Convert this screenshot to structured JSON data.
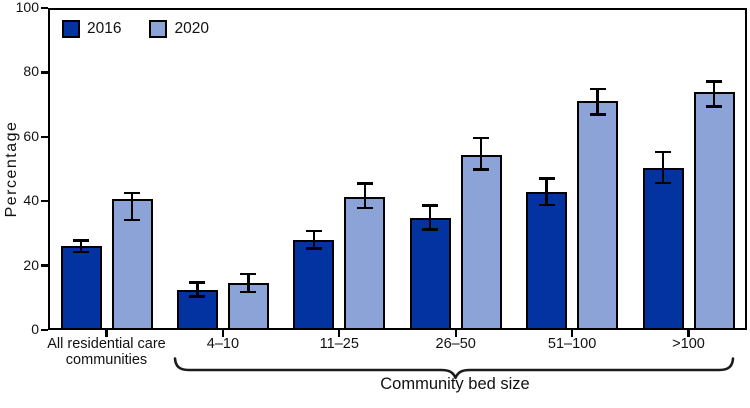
{
  "chart_data": {
    "type": "bar",
    "title": "",
    "ylabel": "Percentage",
    "ylim": [
      0,
      100
    ],
    "yticks": [
      0,
      20,
      40,
      60,
      80,
      100
    ],
    "grid": false,
    "legend_position": "top-left",
    "error_bars": true,
    "categories": [
      "All residential care\ncommunities",
      "4–10",
      "11–25",
      "26–50",
      "51–100",
      ">100"
    ],
    "group_brace": {
      "label": "Community bed size",
      "from_category": 1,
      "to_category": 5
    },
    "series": [
      {
        "name": "2016",
        "color": "#0233a0",
        "values": [
          26.0,
          12.3,
          27.9,
          34.7,
          42.9,
          50.3
        ],
        "ci_low": [
          24.1,
          10.3,
          25.3,
          31.1,
          38.8,
          45.6
        ],
        "ci_high": [
          27.9,
          14.8,
          30.9,
          38.8,
          47.2,
          55.3
        ]
      },
      {
        "name": "2020",
        "color": "#8ca3d7",
        "values": [
          40.7,
          14.5,
          41.3,
          54.4,
          71.0,
          73.9
        ],
        "ci_low": [
          34.1,
          11.7,
          37.8,
          49.8,
          66.9,
          69.4
        ],
        "ci_high": [
          42.6,
          17.5,
          45.6,
          59.7,
          75.0,
          77.3
        ]
      }
    ],
    "colors": {
      "series_2016": "#0233a0",
      "series_2020": "#8ca3d7",
      "axis": "#000000",
      "background": "#ffffff"
    }
  }
}
